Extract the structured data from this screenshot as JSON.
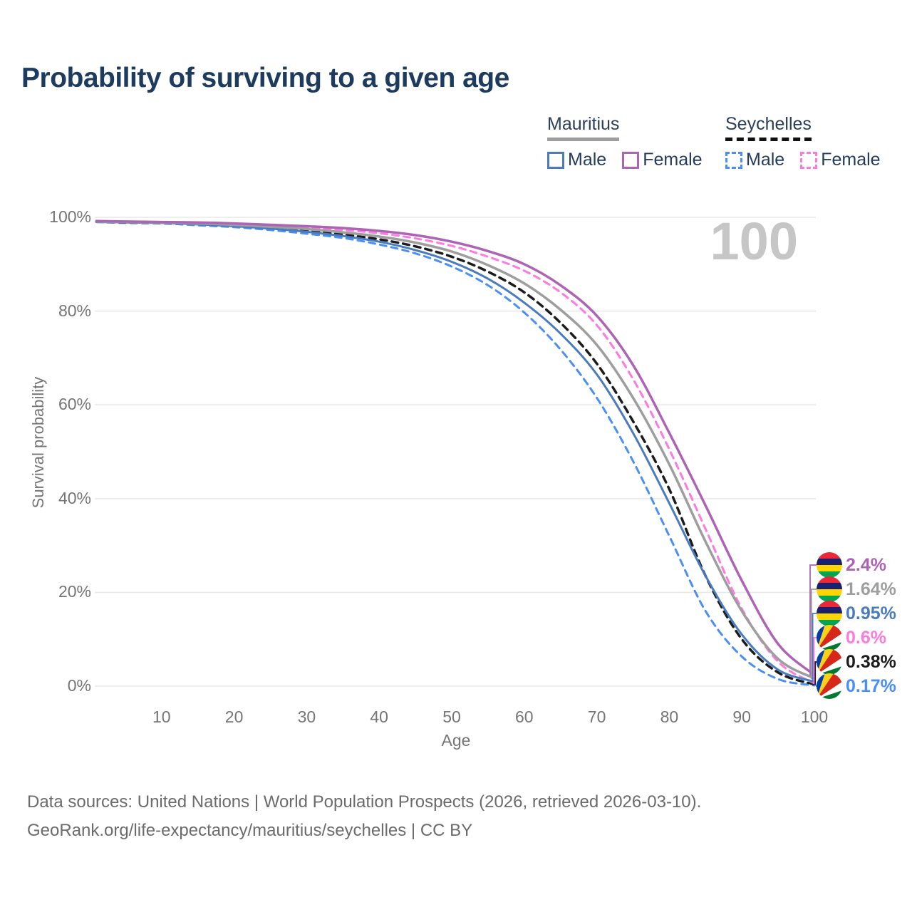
{
  "title": "Probability of surviving to a given age",
  "watermark": "100",
  "axes": {
    "x_label": "Age",
    "y_label": "Survival probability",
    "x_ticks": [
      10,
      20,
      30,
      40,
      50,
      60,
      70,
      80,
      90,
      100
    ],
    "y_ticks": [
      {
        "label": "0%",
        "value": 0
      },
      {
        "label": "20%",
        "value": 20
      },
      {
        "label": "40%",
        "value": 40
      },
      {
        "label": "60%",
        "value": 60
      },
      {
        "label": "80%",
        "value": 80
      },
      {
        "label": "100%",
        "value": 100
      }
    ],
    "x_range": [
      0,
      100
    ],
    "y_range": [
      0,
      100
    ],
    "grid": true
  },
  "legend": {
    "groups": [
      {
        "name": "Mauritius",
        "line_style": "solid",
        "underline_color": "#9e9e9e",
        "items": [
          {
            "key": "mauritius-male",
            "label": "Male",
            "color": "#4a7bbf",
            "dash": false
          },
          {
            "key": "mauritius-female",
            "label": "Female",
            "color": "#ad64b5",
            "dash": false
          }
        ]
      },
      {
        "name": "Seychelles",
        "line_style": "dashed",
        "underline_color": "#111111",
        "items": [
          {
            "key": "seychelles-male",
            "label": "Male",
            "color": "#4a8ff5",
            "dash": true
          },
          {
            "key": "seychelles-female",
            "label": "Female",
            "color": "#ff79e1",
            "dash": true
          }
        ]
      }
    ]
  },
  "chart_data": {
    "type": "line",
    "title": "Probability of surviving to a given age",
    "xlabel": "Age",
    "ylabel": "Survival probability",
    "x": [
      1,
      5,
      10,
      15,
      20,
      25,
      30,
      35,
      40,
      45,
      50,
      55,
      60,
      65,
      70,
      75,
      80,
      85,
      90,
      95,
      100
    ],
    "unit": "%",
    "series": [
      {
        "key": "mauritius-female",
        "name": "Mauritius Female",
        "country": "Mauritius",
        "sex": "Female",
        "color": "#ad64b5",
        "dash": false,
        "width": 3.5,
        "flag": "mauritius",
        "end_label": "2.4%",
        "values": [
          99.2,
          99.1,
          99.0,
          98.9,
          98.7,
          98.4,
          98.1,
          97.7,
          97.1,
          96.2,
          94.8,
          92.8,
          90.0,
          85.5,
          79.0,
          68.5,
          54.0,
          38.5,
          22.5,
          9.0,
          2.4
        ]
      },
      {
        "key": "mauritius-total",
        "name": "Mauritius",
        "country": "Mauritius",
        "sex": "Both",
        "color": "#9e9e9e",
        "dash": false,
        "width": 3.5,
        "flag": "mauritius",
        "end_label": "1.64%",
        "values": [
          99.1,
          99.0,
          98.9,
          98.7,
          98.4,
          98.0,
          97.5,
          96.8,
          95.9,
          94.6,
          92.7,
          89.8,
          85.9,
          80.3,
          72.8,
          61.5,
          47.3,
          30.8,
          16.0,
          5.8,
          1.64
        ]
      },
      {
        "key": "mauritius-male",
        "name": "Mauritius Male",
        "country": "Mauritius",
        "sex": "Male",
        "color": "#4a7bbf",
        "dash": false,
        "width": 3,
        "flag": "mauritius",
        "end_label": "0.95%",
        "values": [
          99.0,
          98.9,
          98.8,
          98.5,
          98.1,
          97.6,
          96.9,
          96.0,
          94.8,
          93.0,
          90.5,
          86.9,
          81.8,
          75.2,
          66.5,
          54.0,
          39.0,
          23.5,
          11.0,
          3.5,
          0.95
        ]
      },
      {
        "key": "seychelles-female",
        "name": "Seychelles Female",
        "country": "Seychelles",
        "sex": "Female",
        "color": "#ff79e1",
        "dash": true,
        "width": 3,
        "flag": "seychelles",
        "end_label": "0.6%",
        "values": [
          99.2,
          99.0,
          98.9,
          98.8,
          98.5,
          98.2,
          97.8,
          97.3,
          96.6,
          95.5,
          93.9,
          91.6,
          88.6,
          84.0,
          77.0,
          65.5,
          50.5,
          33.5,
          16.5,
          5.2,
          0.6
        ]
      },
      {
        "key": "seychelles-total",
        "name": "Seychelles",
        "country": "Seychelles",
        "sex": "Both",
        "color": "#1c1c1c",
        "dash": true,
        "width": 3.5,
        "flag": "seychelles",
        "end_label": "0.38%",
        "values": [
          99.1,
          98.9,
          98.8,
          98.6,
          98.2,
          97.7,
          97.1,
          96.3,
          95.3,
          93.8,
          91.6,
          88.4,
          84.0,
          77.5,
          68.8,
          56.5,
          42.0,
          23.5,
          10.0,
          2.9,
          0.38
        ]
      },
      {
        "key": "seychelles-male",
        "name": "Seychelles Male",
        "country": "Seychelles",
        "sex": "Male",
        "color": "#4a8ff5",
        "dash": true,
        "width": 3,
        "flag": "seychelles",
        "end_label": "0.17%",
        "values": [
          99.0,
          98.8,
          98.7,
          98.3,
          97.9,
          97.3,
          96.5,
          95.6,
          94.2,
          92.3,
          89.5,
          85.5,
          79.7,
          71.8,
          61.5,
          48.0,
          32.0,
          16.0,
          6.3,
          1.5,
          0.17
        ]
      }
    ],
    "legend_position": "top-right",
    "watermark": "100"
  },
  "flag_colors": {
    "mauritius": {
      "red": "#EA2839",
      "blue": "#1A206D",
      "yellow": "#FFD500",
      "green": "#00A551"
    },
    "seychelles": {
      "blue": "#003DA5",
      "yellow": "#FCD116",
      "red": "#D62718",
      "white": "#FFFFFF",
      "green": "#007A33"
    }
  },
  "source": {
    "line1": "Data sources: United Nations | World Population Prospects (2026, retrieved 2026-03-10).",
    "line2": "GeoRank.org/life-expectancy/mauritius/seychelles | CC BY"
  }
}
